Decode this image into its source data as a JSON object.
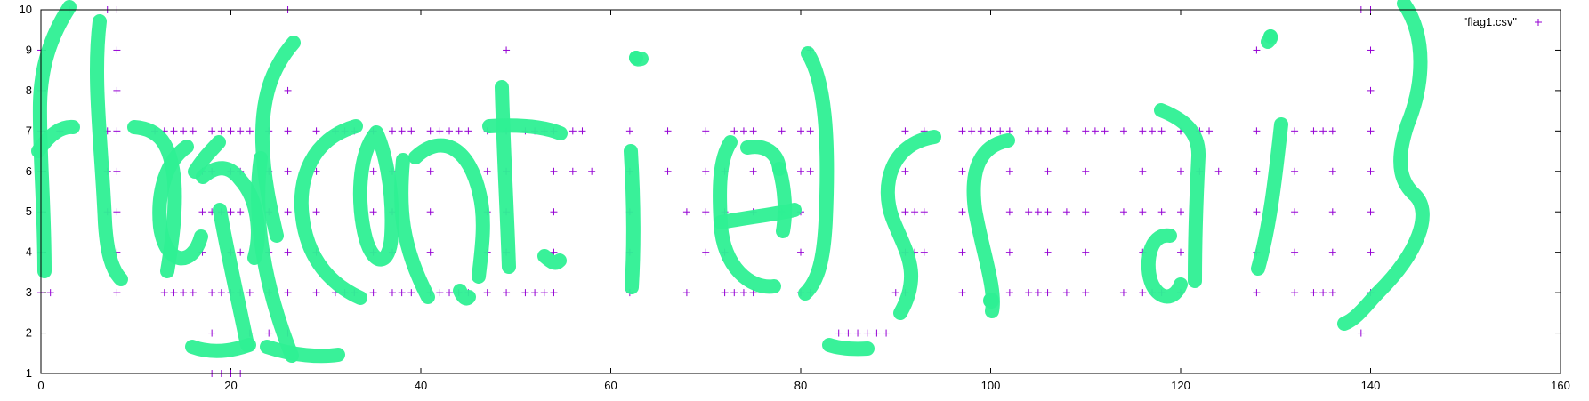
{
  "chart_data": {
    "type": "scatter",
    "title": "",
    "xlabel": "",
    "ylabel": "",
    "xlim": [
      0,
      160
    ],
    "ylim": [
      1,
      10
    ],
    "xticks": [
      "0",
      "20",
      "40",
      "60",
      "80",
      "100",
      "120",
      "140",
      "160"
    ],
    "yticks": [
      "1",
      "2",
      "3",
      "4",
      "5",
      "6",
      "7",
      "8",
      "9",
      "10"
    ],
    "grid": false,
    "legend_position": "top-right",
    "series": [
      {
        "name": "\"flag1.csv\"",
        "color": "#9400d3",
        "marker": "plus",
        "points": [
          [
            0,
            3
          ],
          [
            0,
            4
          ],
          [
            0,
            5
          ],
          [
            0,
            6
          ],
          [
            0,
            7
          ],
          [
            0,
            8
          ],
          [
            0,
            9
          ],
          [
            1,
            3
          ],
          [
            2,
            7
          ],
          [
            3,
            10
          ],
          [
            7,
            5
          ],
          [
            7,
            6
          ],
          [
            7,
            7
          ],
          [
            7,
            10
          ],
          [
            8,
            3
          ],
          [
            8,
            4
          ],
          [
            8,
            5
          ],
          [
            8,
            6
          ],
          [
            8,
            7
          ],
          [
            8,
            8
          ],
          [
            8,
            9
          ],
          [
            8,
            10
          ],
          [
            12,
            7
          ],
          [
            13,
            3
          ],
          [
            13,
            7
          ],
          [
            14,
            3
          ],
          [
            14,
            7
          ],
          [
            15,
            3
          ],
          [
            15,
            7
          ],
          [
            16,
            3
          ],
          [
            16,
            7
          ],
          [
            17,
            4
          ],
          [
            17,
            5
          ],
          [
            17,
            6
          ],
          [
            18,
            1
          ],
          [
            18,
            2
          ],
          [
            18,
            3
          ],
          [
            18,
            5
          ],
          [
            18,
            6
          ],
          [
            18,
            7
          ],
          [
            19,
            1
          ],
          [
            19,
            3
          ],
          [
            19,
            5
          ],
          [
            19,
            7
          ],
          [
            20,
            1
          ],
          [
            20,
            3
          ],
          [
            20,
            4
          ],
          [
            20,
            5
          ],
          [
            20,
            6
          ],
          [
            20,
            7
          ],
          [
            21,
            1
          ],
          [
            21,
            3
          ],
          [
            21,
            4
          ],
          [
            21,
            5
          ],
          [
            21,
            6
          ],
          [
            21,
            7
          ],
          [
            22,
            2
          ],
          [
            22,
            3
          ],
          [
            22,
            7
          ],
          [
            24,
            2
          ],
          [
            24,
            3
          ],
          [
            24,
            4
          ],
          [
            24,
            5
          ],
          [
            24,
            6
          ],
          [
            24,
            7
          ],
          [
            26,
            2
          ],
          [
            26,
            3
          ],
          [
            26,
            4
          ],
          [
            26,
            5
          ],
          [
            26,
            6
          ],
          [
            26,
            7
          ],
          [
            26,
            8
          ],
          [
            26,
            10
          ],
          [
            29,
            3
          ],
          [
            29,
            4
          ],
          [
            29,
            5
          ],
          [
            29,
            6
          ],
          [
            29,
            7
          ],
          [
            31,
            3
          ],
          [
            31,
            7
          ],
          [
            32,
            3
          ],
          [
            32,
            7
          ],
          [
            33,
            3
          ],
          [
            33,
            7
          ],
          [
            35,
            3
          ],
          [
            35,
            4
          ],
          [
            35,
            5
          ],
          [
            35,
            6
          ],
          [
            35,
            7
          ],
          [
            37,
            3
          ],
          [
            37,
            4
          ],
          [
            37,
            5
          ],
          [
            37,
            6
          ],
          [
            37,
            7
          ],
          [
            38,
            3
          ],
          [
            38,
            7
          ],
          [
            39,
            3
          ],
          [
            39,
            7
          ],
          [
            41,
            3
          ],
          [
            41,
            4
          ],
          [
            41,
            5
          ],
          [
            41,
            6
          ],
          [
            41,
            7
          ],
          [
            42,
            3
          ],
          [
            42,
            7
          ],
          [
            43,
            3
          ],
          [
            43,
            7
          ],
          [
            44,
            3
          ],
          [
            44,
            7
          ],
          [
            45,
            3
          ],
          [
            45,
            7
          ],
          [
            47,
            3
          ],
          [
            47,
            4
          ],
          [
            47,
            5
          ],
          [
            47,
            6
          ],
          [
            47,
            7
          ],
          [
            49,
            3
          ],
          [
            49,
            4
          ],
          [
            49,
            5
          ],
          [
            49,
            6
          ],
          [
            49,
            7
          ],
          [
            49,
            9
          ],
          [
            51,
            3
          ],
          [
            51,
            7
          ],
          [
            52,
            3
          ],
          [
            52,
            7
          ],
          [
            53,
            3
          ],
          [
            53,
            7
          ],
          [
            54,
            3
          ],
          [
            54,
            4
          ],
          [
            54,
            5
          ],
          [
            54,
            6
          ],
          [
            54,
            7
          ],
          [
            56,
            6
          ],
          [
            56,
            7
          ],
          [
            57,
            7
          ],
          [
            58,
            6
          ],
          [
            62,
            3
          ],
          [
            62,
            4
          ],
          [
            62,
            5
          ],
          [
            62,
            6
          ],
          [
            62,
            7
          ],
          [
            66,
            6
          ],
          [
            66,
            7
          ],
          [
            68,
            3
          ],
          [
            68,
            5
          ],
          [
            70,
            4
          ],
          [
            70,
            5
          ],
          [
            70,
            6
          ],
          [
            70,
            7
          ],
          [
            72,
            3
          ],
          [
            72,
            4
          ],
          [
            72,
            5
          ],
          [
            72,
            6
          ],
          [
            73,
            3
          ],
          [
            73,
            7
          ],
          [
            74,
            3
          ],
          [
            74,
            7
          ],
          [
            75,
            3
          ],
          [
            75,
            5
          ],
          [
            75,
            6
          ],
          [
            75,
            7
          ],
          [
            78,
            5
          ],
          [
            78,
            6
          ],
          [
            78,
            7
          ],
          [
            80,
            3
          ],
          [
            80,
            4
          ],
          [
            80,
            5
          ],
          [
            80,
            6
          ],
          [
            80,
            7
          ],
          [
            81,
            3
          ],
          [
            81,
            6
          ],
          [
            81,
            7
          ],
          [
            81,
            9
          ],
          [
            84,
            2
          ],
          [
            85,
            2
          ],
          [
            86,
            2
          ],
          [
            87,
            2
          ],
          [
            88,
            2
          ],
          [
            89,
            2
          ],
          [
            90,
            3
          ],
          [
            91,
            3
          ],
          [
            91,
            4
          ],
          [
            91,
            5
          ],
          [
            91,
            6
          ],
          [
            91,
            7
          ],
          [
            92,
            4
          ],
          [
            92,
            5
          ],
          [
            93,
            4
          ],
          [
            93,
            5
          ],
          [
            93,
            7
          ],
          [
            97,
            3
          ],
          [
            97,
            4
          ],
          [
            97,
            5
          ],
          [
            97,
            6
          ],
          [
            97,
            7
          ],
          [
            98,
            7
          ],
          [
            99,
            7
          ],
          [
            100,
            7
          ],
          [
            101,
            7
          ],
          [
            102,
            3
          ],
          [
            102,
            4
          ],
          [
            102,
            5
          ],
          [
            102,
            6
          ],
          [
            102,
            7
          ],
          [
            104,
            3
          ],
          [
            104,
            5
          ],
          [
            104,
            7
          ],
          [
            105,
            3
          ],
          [
            105,
            5
          ],
          [
            105,
            7
          ],
          [
            106,
            3
          ],
          [
            106,
            4
          ],
          [
            106,
            5
          ],
          [
            106,
            6
          ],
          [
            106,
            7
          ],
          [
            108,
            3
          ],
          [
            108,
            5
          ],
          [
            108,
            7
          ],
          [
            110,
            3
          ],
          [
            110,
            4
          ],
          [
            110,
            5
          ],
          [
            110,
            6
          ],
          [
            110,
            7
          ],
          [
            111,
            7
          ],
          [
            112,
            7
          ],
          [
            114,
            3
          ],
          [
            114,
            5
          ],
          [
            114,
            7
          ],
          [
            116,
            3
          ],
          [
            116,
            4
          ],
          [
            116,
            5
          ],
          [
            116,
            6
          ],
          [
            116,
            7
          ],
          [
            117,
            3
          ],
          [
            117,
            7
          ],
          [
            118,
            3
          ],
          [
            118,
            5
          ],
          [
            118,
            7
          ],
          [
            120,
            3
          ],
          [
            120,
            4
          ],
          [
            120,
            5
          ],
          [
            120,
            6
          ],
          [
            120,
            7
          ],
          [
            122,
            6
          ],
          [
            122,
            7
          ],
          [
            123,
            7
          ],
          [
            124,
            6
          ],
          [
            128,
            3
          ],
          [
            128,
            4
          ],
          [
            128,
            5
          ],
          [
            128,
            6
          ],
          [
            128,
            7
          ],
          [
            128,
            9
          ],
          [
            132,
            3
          ],
          [
            132,
            4
          ],
          [
            132,
            5
          ],
          [
            132,
            6
          ],
          [
            132,
            7
          ],
          [
            134,
            3
          ],
          [
            134,
            7
          ],
          [
            135,
            3
          ],
          [
            135,
            7
          ],
          [
            136,
            3
          ],
          [
            136,
            4
          ],
          [
            136,
            5
          ],
          [
            136,
            6
          ],
          [
            136,
            7
          ],
          [
            139,
            2
          ],
          [
            139,
            10
          ],
          [
            140,
            3
          ],
          [
            140,
            4
          ],
          [
            140,
            5
          ],
          [
            140,
            6
          ],
          [
            140,
            7
          ],
          [
            140,
            8
          ],
          [
            140,
            9
          ],
          [
            140,
            10
          ]
        ]
      }
    ],
    "annotation_overlay": {
      "description_color": "#2ef094"
    }
  }
}
